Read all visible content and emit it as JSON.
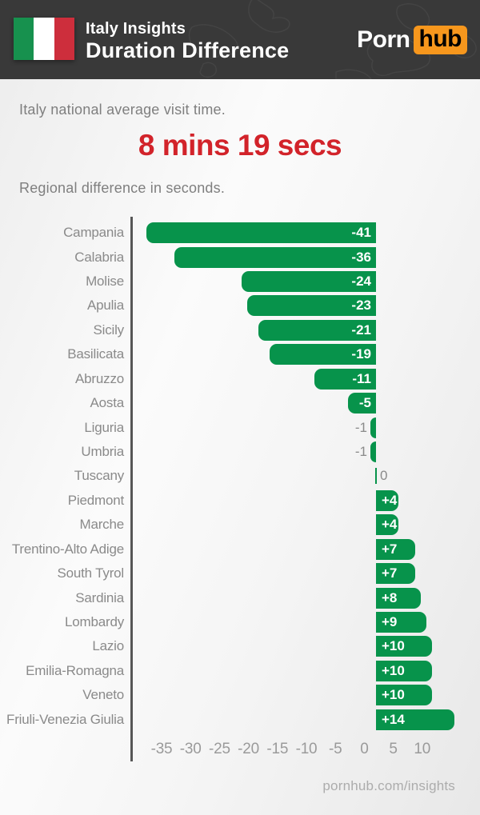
{
  "header": {
    "title_line1": "Italy Insights",
    "title_line2": "Duration Difference",
    "logo_part1": "Porn",
    "logo_part2": "hub",
    "logo_accent": "#f7971d",
    "bg_color": "#393939",
    "flag_colors": {
      "green": "#17914e",
      "white": "#ffffff",
      "red": "#cd2e3c"
    }
  },
  "intro": {
    "average_label": "Italy national average visit time.",
    "average_value": "8 mins 19 secs",
    "stat_color": "#d2232a",
    "chart_caption": "Regional difference in seconds."
  },
  "chart_data": {
    "type": "bar",
    "orientation": "horizontal",
    "unit": "seconds",
    "title": "Regional difference in seconds",
    "bar_color": "#07934b",
    "label_color": "#8a8a8a",
    "categories": [
      "Campania",
      "Calabria",
      "Molise",
      "Apulia",
      "Sicily",
      "Basilicata",
      "Abruzzo",
      "Aosta",
      "Liguria",
      "Umbria",
      "Tuscany",
      "Piedmont",
      "Marche",
      "Trentino-Alto Adige",
      "South Tyrol",
      "Sardinia",
      "Lombardy",
      "Lazio",
      "Emilia-Romagna",
      "Veneto",
      "Friuli-Venezia Giulia"
    ],
    "values": [
      -41,
      -36,
      -24,
      -23,
      -21,
      -19,
      -11,
      -5,
      -1,
      -1,
      0,
      4,
      4,
      7,
      7,
      8,
      9,
      10,
      10,
      10,
      14
    ],
    "value_labels": [
      "-41",
      "-36",
      "-24",
      "-23",
      "-21",
      "-19",
      "-11",
      "-5",
      "-1",
      "-1",
      "0",
      "+4",
      "+4",
      "+7",
      "+7",
      "+8",
      "+9",
      "+10",
      "+10",
      "+10",
      "+14"
    ],
    "x_ticks": [
      -35,
      -30,
      -25,
      -20,
      -15,
      -10,
      -5,
      0,
      5,
      10
    ],
    "xlim": [
      -43,
      19
    ],
    "grid": false,
    "legend": false
  },
  "footer": {
    "site_link": "pornhub.com/insights"
  }
}
